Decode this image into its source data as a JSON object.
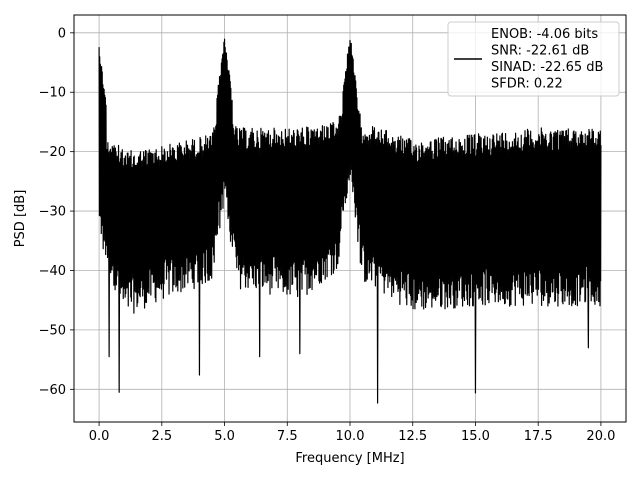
{
  "chart_data": {
    "type": "line",
    "title": "",
    "xlabel": "Frequency [MHz]",
    "ylabel": "PSD [dB]",
    "xlim": [
      -1.0,
      21.0
    ],
    "ylim": [
      -65.5,
      3.0
    ],
    "x_ticks": [
      0.0,
      2.5,
      5.0,
      7.5,
      10.0,
      12.5,
      15.0,
      17.5,
      20.0
    ],
    "x_tick_labels": [
      "0.0",
      "2.5",
      "5.0",
      "7.5",
      "10.0",
      "12.5",
      "15.0",
      "17.5",
      "20.0"
    ],
    "y_ticks": [
      0,
      -10,
      -20,
      -30,
      -40,
      -50,
      -60
    ],
    "y_tick_labels": [
      "0",
      "−10",
      "−20",
      "−30",
      "−40",
      "−50",
      "−60"
    ],
    "grid": true,
    "legend_position": "top-right",
    "series": [
      {
        "name": "ENOB: -4.06 bits\nSNR: -22.61 dB\nSINAD: -22.65 dB\nSFDR: 0.22",
        "color": "#000000",
        "x_range": [
          0.0,
          20.0
        ],
        "noise_band_upper_dB": [
          [
            0.0,
            -15
          ],
          [
            1.0,
            -20
          ],
          [
            2.5,
            -19
          ],
          [
            4.5,
            -17
          ],
          [
            5.0,
            -10
          ],
          [
            5.5,
            -16
          ],
          [
            8.0,
            -16
          ],
          [
            9.5,
            -15
          ],
          [
            10.0,
            -8
          ],
          [
            10.5,
            -15
          ],
          [
            12.5,
            -18
          ],
          [
            15.0,
            -17
          ],
          [
            17.5,
            -16
          ],
          [
            20.0,
            -16
          ]
        ],
        "noise_band_lower_dB": [
          [
            0.0,
            -35
          ],
          [
            1.0,
            -48
          ],
          [
            2.5,
            -45
          ],
          [
            4.5,
            -42
          ],
          [
            5.0,
            -28
          ],
          [
            5.5,
            -43
          ],
          [
            8.0,
            -45
          ],
          [
            9.5,
            -40
          ],
          [
            10.0,
            -25
          ],
          [
            10.5,
            -42
          ],
          [
            12.5,
            -47
          ],
          [
            15.0,
            -46
          ],
          [
            17.5,
            -46
          ],
          [
            20.0,
            -46
          ]
        ],
        "peaks": [
          {
            "x": 0.0,
            "y": -1.8
          },
          {
            "x": 5.0,
            "y": 0.0
          },
          {
            "x": 10.0,
            "y": 0.0
          }
        ],
        "deep_dips": [
          {
            "x": 0.4,
            "y": -54.5
          },
          {
            "x": 0.8,
            "y": -60.5
          },
          {
            "x": 4.0,
            "y": -57.6
          },
          {
            "x": 6.4,
            "y": -54.5
          },
          {
            "x": 8.0,
            "y": -54.0
          },
          {
            "x": 11.1,
            "y": -62.3
          },
          {
            "x": 15.0,
            "y": -60.6
          },
          {
            "x": 19.5,
            "y": -53.0
          }
        ],
        "num_points": 1600
      }
    ]
  },
  "legend": {
    "lines": [
      "ENOB: -4.06 bits",
      "SNR: -22.61 dB",
      "SINAD: -22.65 dB",
      "SFDR: 0.22"
    ]
  }
}
